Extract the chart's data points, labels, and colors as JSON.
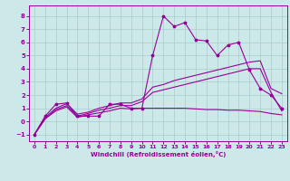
{
  "xlabel": "Windchill (Refroidissement éolien,°C)",
  "bg_color": "#cce8e8",
  "grid_color": "#aacccc",
  "line_color": "#990099",
  "xlim": [
    -0.5,
    23.5
  ],
  "ylim": [
    -1.5,
    8.8
  ],
  "xticks": [
    0,
    1,
    2,
    3,
    4,
    5,
    6,
    7,
    8,
    9,
    10,
    11,
    12,
    13,
    14,
    15,
    16,
    17,
    18,
    19,
    20,
    21,
    22,
    23
  ],
  "yticks": [
    -1,
    0,
    1,
    2,
    3,
    4,
    5,
    6,
    7,
    8
  ],
  "s1_x": [
    0,
    1,
    2,
    3,
    4,
    5,
    6,
    7,
    8,
    9,
    10,
    11,
    12,
    13,
    14,
    15,
    16,
    17,
    18,
    19,
    20,
    21,
    22,
    23
  ],
  "s1_y": [
    -1.0,
    0.4,
    1.3,
    1.4,
    0.4,
    0.4,
    0.4,
    1.3,
    1.3,
    1.0,
    1.0,
    5.0,
    8.0,
    7.2,
    7.5,
    6.2,
    6.1,
    5.0,
    5.8,
    6.0,
    3.9,
    2.5,
    2.0,
    1.0
  ],
  "s2_x": [
    0,
    1,
    2,
    3,
    4,
    5,
    6,
    7,
    8,
    9,
    10,
    11,
    12,
    13,
    14,
    15,
    16,
    17,
    18,
    19,
    20,
    21,
    22,
    23
  ],
  "s2_y": [
    -1.0,
    0.3,
    1.0,
    1.35,
    0.55,
    0.7,
    1.0,
    1.2,
    1.4,
    1.4,
    1.7,
    2.6,
    2.8,
    3.1,
    3.3,
    3.5,
    3.7,
    3.9,
    4.1,
    4.3,
    4.5,
    4.6,
    2.5,
    2.1
  ],
  "s3_x": [
    0,
    1,
    2,
    3,
    4,
    5,
    6,
    7,
    8,
    9,
    10,
    11,
    12,
    13,
    14,
    15,
    16,
    17,
    18,
    19,
    20,
    21,
    22,
    23
  ],
  "s3_y": [
    -1.0,
    0.2,
    0.9,
    1.2,
    0.4,
    0.6,
    0.85,
    1.0,
    1.2,
    1.2,
    1.5,
    2.2,
    2.4,
    2.6,
    2.8,
    3.0,
    3.2,
    3.4,
    3.6,
    3.8,
    4.0,
    4.0,
    2.2,
    0.8
  ],
  "s4_x": [
    0,
    1,
    2,
    3,
    4,
    5,
    6,
    7,
    8,
    9,
    10,
    11,
    12,
    13,
    14,
    15,
    16,
    17,
    18,
    19,
    20,
    21,
    22,
    23
  ],
  "s4_y": [
    -1.0,
    0.2,
    0.8,
    1.1,
    0.3,
    0.5,
    0.65,
    0.8,
    1.0,
    0.95,
    1.0,
    1.0,
    1.0,
    1.0,
    1.0,
    0.95,
    0.9,
    0.9,
    0.85,
    0.85,
    0.8,
    0.75,
    0.6,
    0.5
  ]
}
